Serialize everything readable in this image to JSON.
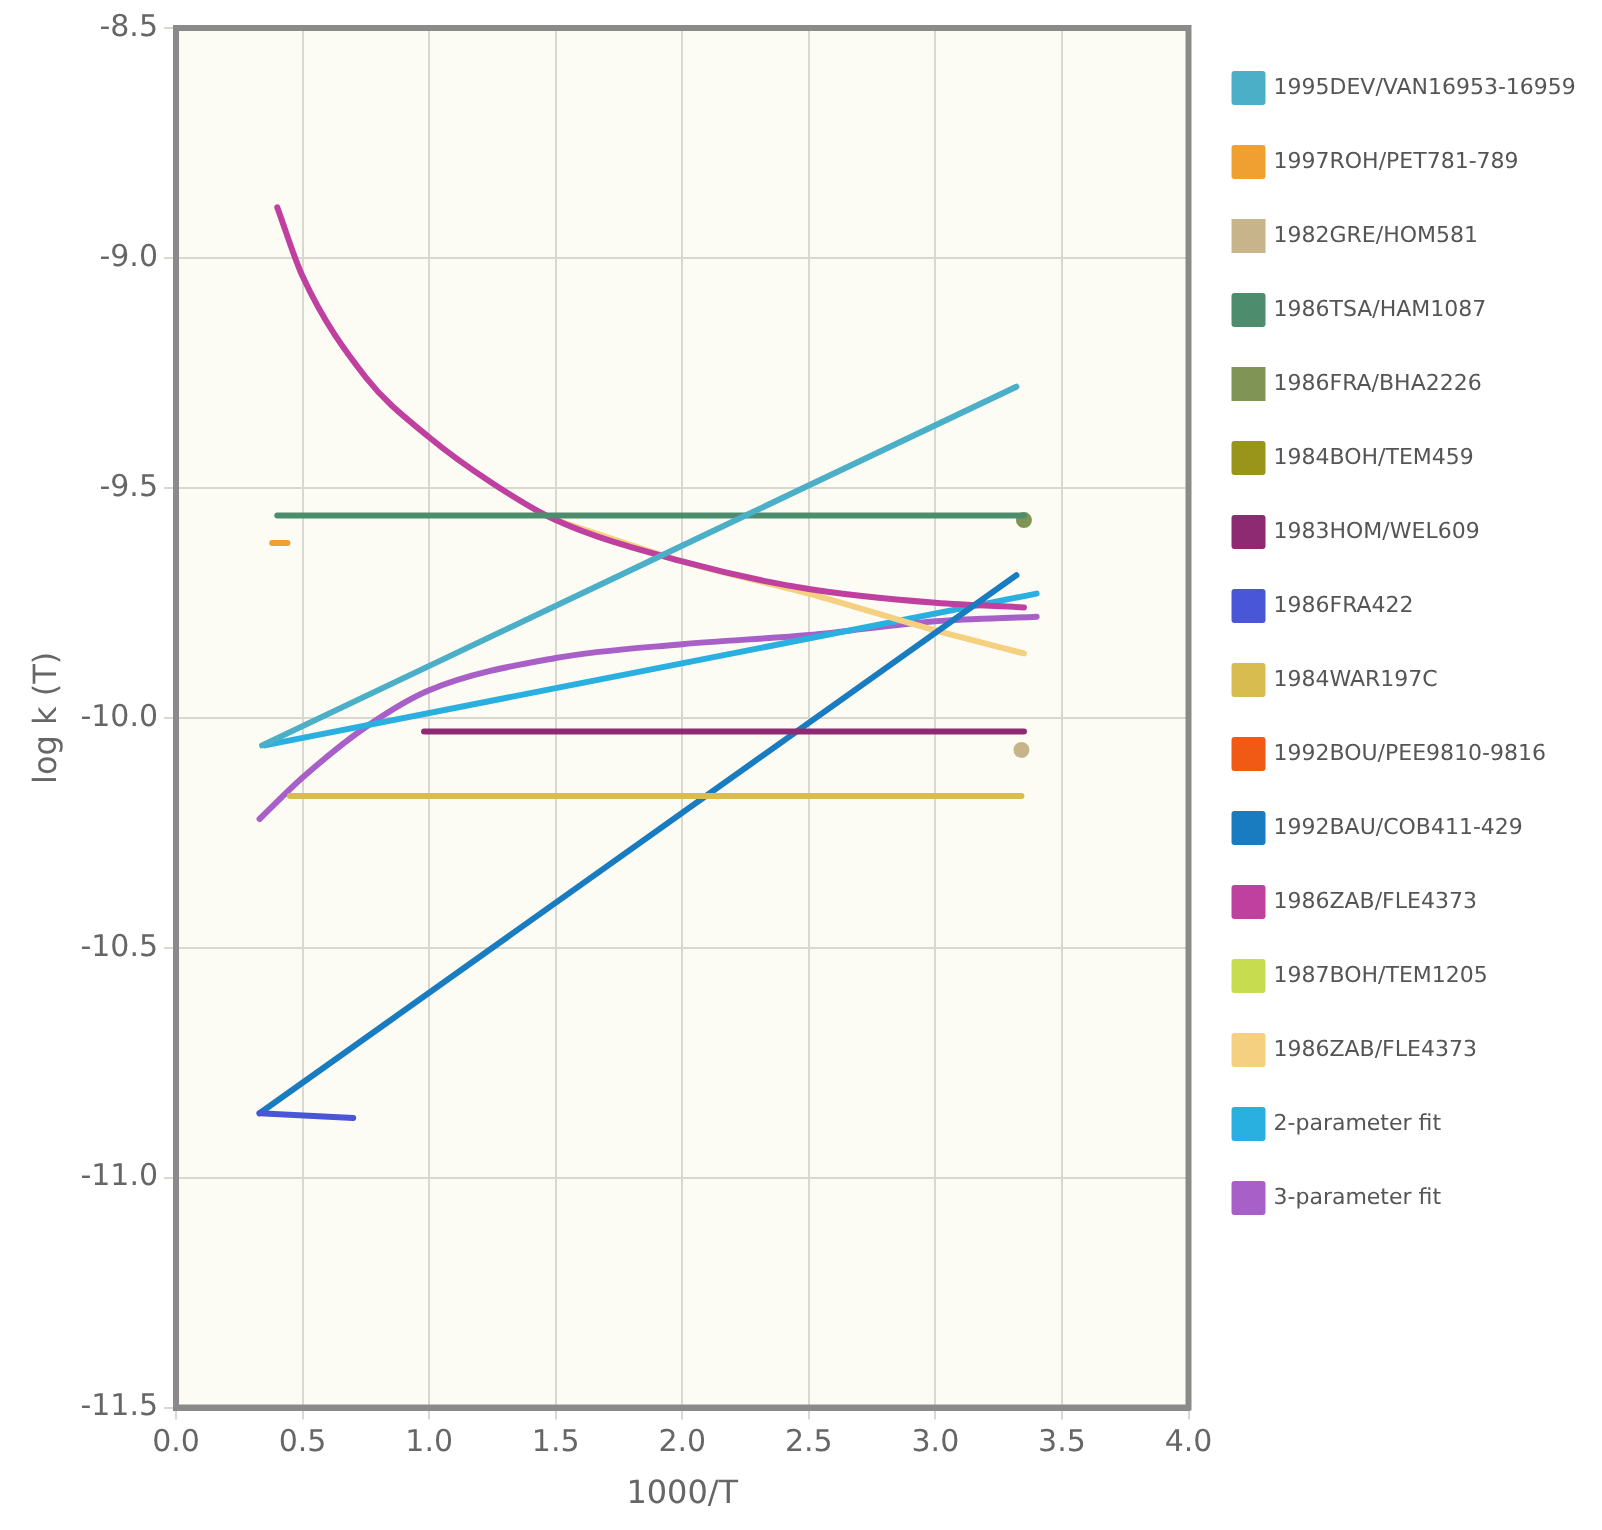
{
  "chart_data": {
    "type": "line",
    "xlabel": "1000/T",
    "ylabel": "log k (T)",
    "xlim": [
      0,
      4
    ],
    "ylim": [
      -11.5,
      -8.5
    ],
    "xticks": [
      {
        "value": 0,
        "label": "0.0"
      },
      0.5,
      {
        "value": 1,
        "label": "1.0"
      },
      1.5,
      {
        "value": 2,
        "label": "2.0"
      },
      2.5,
      {
        "value": 3,
        "label": "3.0"
      },
      3.5,
      {
        "value": 4,
        "label": "4.0"
      }
    ],
    "yticks": [
      {
        "value": -11.5,
        "label": "-11.5"
      },
      {
        "value": -11,
        "label": "-11.0"
      },
      {
        "value": -10.5,
        "label": "-10.5"
      },
      {
        "value": -10,
        "label": "-10.0"
      },
      {
        "value": -9.5,
        "label": "-9.5"
      },
      {
        "value": -9,
        "label": "-9.0"
      },
      {
        "value": -8.5,
        "label": "-8.5"
      }
    ],
    "grid": true,
    "legend": "right",
    "series": [
      {
        "name": "1995DEV/VAN16953-16959",
        "color": "#4bafc8",
        "x": [
          0.34,
          3.32
        ],
        "values": [
          -10.06,
          -9.28
        ]
      },
      {
        "name": "1997ROH/PET781-789",
        "color": "#f0a030",
        "x": [
          0.38,
          0.44
        ],
        "values": [
          -9.62,
          -9.62
        ]
      },
      {
        "name": "1982GRE/HOM581",
        "color": "#c8b48a",
        "type": "scatter",
        "x": [
          3.34
        ],
        "values": [
          -10.07
        ]
      },
      {
        "name": "1986TSA/HAM1087",
        "color": "#4e8c6e",
        "x": [
          0.4,
          3.35
        ],
        "values": [
          -9.56,
          -9.56
        ]
      },
      {
        "name": "1986FRA/BHA2226",
        "color": "#7f9455",
        "type": "scatter",
        "x": [
          3.35
        ],
        "values": [
          -9.57
        ]
      },
      {
        "name": "1984BOH/TEM459",
        "color": "#99951a"
      },
      {
        "name": "1983HOM/WEL609",
        "color": "#8e2a72",
        "x": [
          0.98,
          3.35
        ],
        "values": [
          -10.03,
          -10.03
        ]
      },
      {
        "name": "1986FRA422",
        "color": "#4a56d8",
        "x": [
          0.33,
          0.7
        ],
        "values": [
          -10.86,
          -10.87
        ]
      },
      {
        "name": "1984WAR197C",
        "color": "#d8bc50",
        "x": [
          0.45,
          3.34
        ],
        "values": [
          -10.17,
          -10.17
        ]
      },
      {
        "name": "1992BOU/PEE9810-9816",
        "color": "#f05a14"
      },
      {
        "name": "1992BAU/COB411-429",
        "color": "#1a7cc0",
        "x": [
          0.33,
          3.32
        ],
        "values": [
          -10.86,
          -9.69
        ]
      },
      {
        "name": "1986ZAB/FLE4373",
        "color": "#c040a0",
        "x": [
          0.4,
          0.5,
          0.75,
          1.0,
          1.25,
          1.5,
          2.0,
          2.5,
          3.0,
          3.35
        ],
        "values": [
          -8.89,
          -9.04,
          -9.26,
          -9.39,
          -9.49,
          -9.57,
          -9.66,
          -9.72,
          -9.75,
          -9.76
        ]
      },
      {
        "name": "1987BOH/TEM1205",
        "color": "#c8dc50"
      },
      {
        "name": "1986ZAB/FLE4373",
        "color": "#f5d080",
        "x": [
          1.5,
          2.0,
          2.5,
          3.0,
          3.35
        ],
        "values": [
          -9.57,
          -9.66,
          -9.73,
          -9.81,
          -9.86
        ]
      },
      {
        "name": "2-parameter fit",
        "color": "#29b0e0",
        "x": [
          0.35,
          3.4
        ],
        "values": [
          -10.06,
          -9.73
        ]
      },
      {
        "name": "3-parameter fit",
        "color": "#a860c8",
        "x": [
          0.33,
          0.5,
          0.75,
          1.0,
          1.5,
          2.0,
          2.5,
          3.0,
          3.4
        ],
        "values": [
          -10.22,
          -10.13,
          -10.02,
          -9.94,
          -9.87,
          -9.84,
          -9.82,
          -9.79,
          -9.78
        ]
      }
    ]
  }
}
